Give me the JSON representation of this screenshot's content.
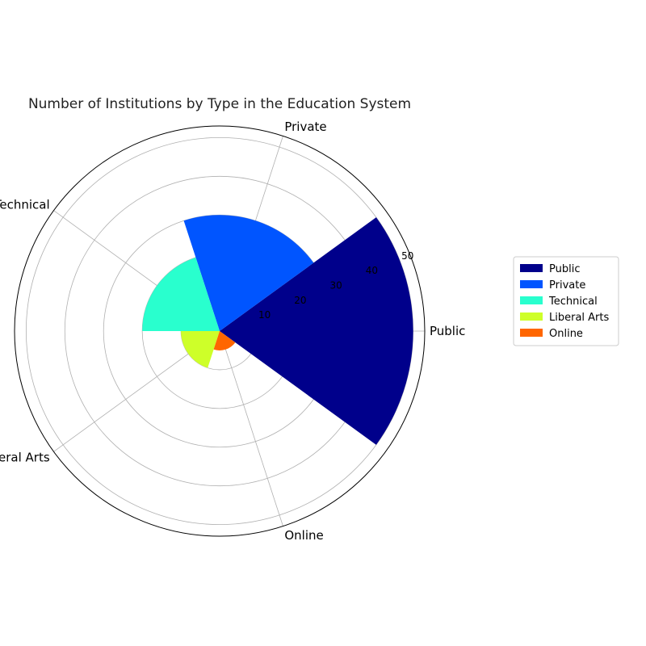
{
  "chart_data": {
    "type": "polar-bar",
    "title": "Number of Institutions by Type in the Education System",
    "categories": [
      "Public",
      "Private",
      "Technical",
      "Liberal Arts",
      "Online"
    ],
    "values": [
      50,
      30,
      20,
      10,
      5
    ],
    "colors": [
      "#00008b",
      "#0055ff",
      "#29ffce",
      "#ceff29",
      "#ff6600"
    ],
    "radial_ticks": [
      10,
      20,
      30,
      40,
      50
    ],
    "radial_tick_labels": [
      "10",
      "20",
      "30",
      "40",
      "50"
    ],
    "rlim": [
      0,
      53
    ],
    "grid": true,
    "legend": {
      "placement": "right",
      "entries": [
        "Public",
        "Private",
        "Technical",
        "Liberal Arts",
        "Online"
      ]
    }
  }
}
